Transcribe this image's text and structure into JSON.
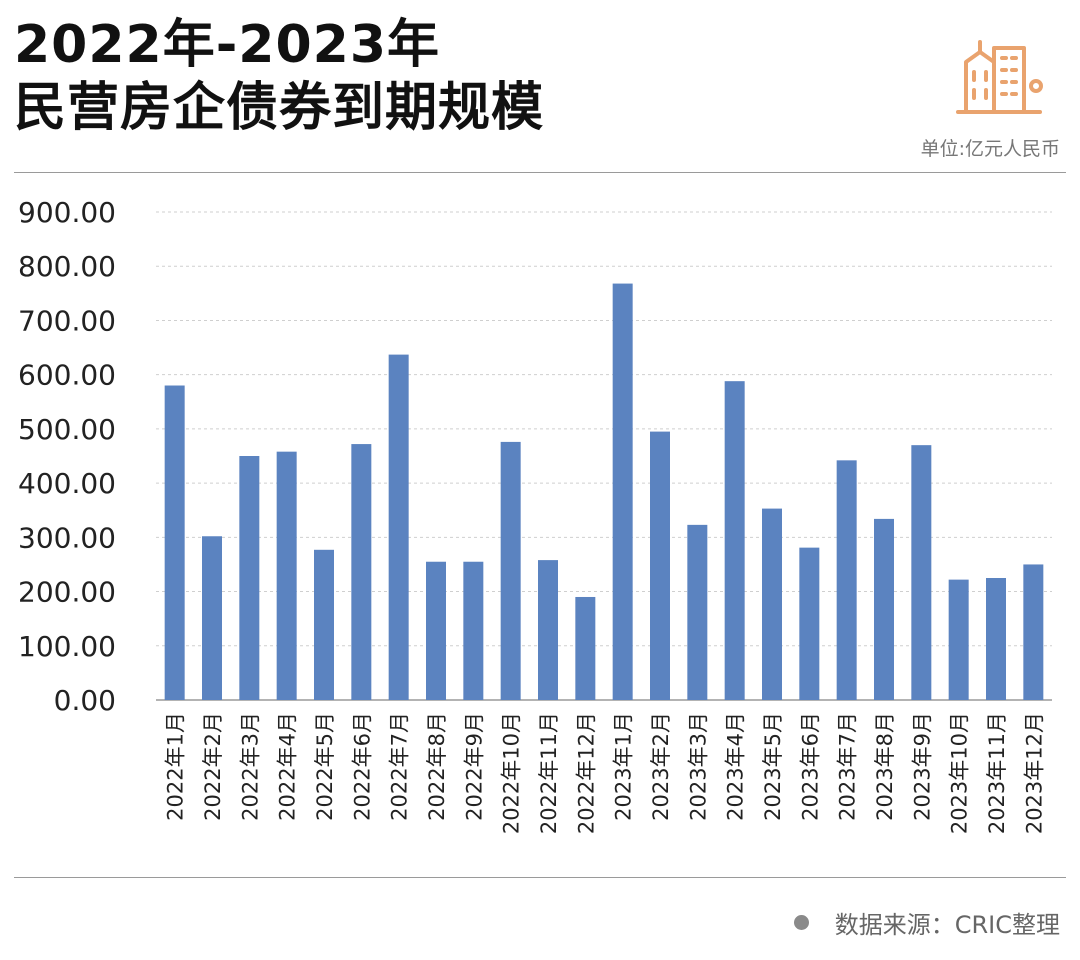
{
  "header": {
    "title_line1": "2022年-2023年",
    "title_line2": "民营房企债券到期规模",
    "unit": "单位:亿元人民币",
    "logo_icon": "buildings-icon",
    "accent_color": "#E9A36E"
  },
  "footer": {
    "source": "数据来源：CRIC整理"
  },
  "chart_data": {
    "type": "bar",
    "title": "2022年-2023年民营房企债券到期规模",
    "ylabel": "",
    "xlabel": "",
    "ylim": [
      0,
      900
    ],
    "yticks": [
      "0.00",
      "100.00",
      "200.00",
      "300.00",
      "400.00",
      "500.00",
      "600.00",
      "700.00",
      "800.00",
      "900.00"
    ],
    "grid": true,
    "bar_color": "#5B83C0",
    "categories": [
      "2022年1月",
      "2022年2月",
      "2022年3月",
      "2022年4月",
      "2022年5月",
      "2022年6月",
      "2022年7月",
      "2022年8月",
      "2022年9月",
      "2022年10月",
      "2022年11月",
      "2022年12月",
      "2023年1月",
      "2023年2月",
      "2023年3月",
      "2023年4月",
      "2023年5月",
      "2023年6月",
      "2023年7月",
      "2023年8月",
      "2023年9月",
      "2023年10月",
      "2023年11月",
      "2023年12月"
    ],
    "values": [
      580,
      302,
      450,
      458,
      277,
      472,
      637,
      255,
      255,
      476,
      258,
      190,
      768,
      495,
      323,
      588,
      353,
      281,
      442,
      334,
      470,
      222,
      225,
      250
    ]
  }
}
